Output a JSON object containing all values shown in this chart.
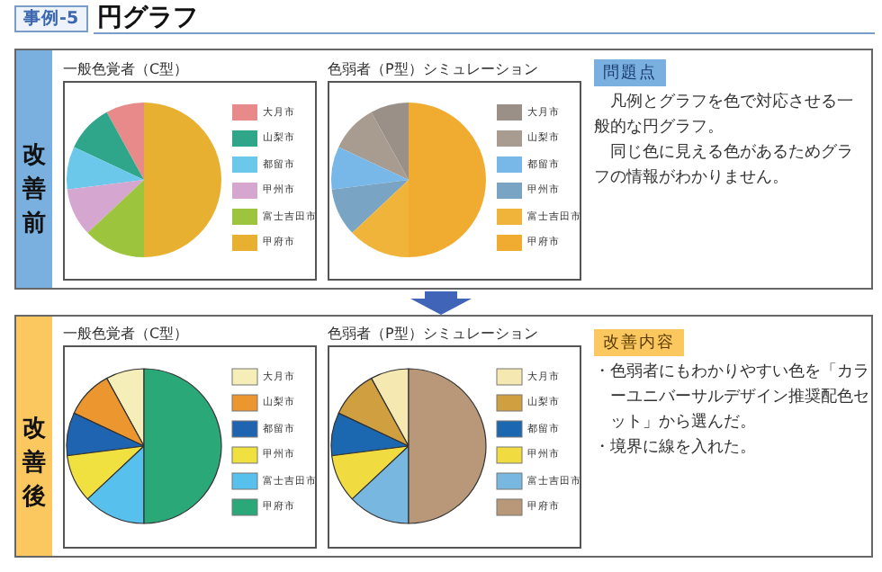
{
  "chart_data": [
    {
      "type": "pie",
      "title": "一般色覚者（C型）",
      "annotations": [
        "事例-5",
        "円グラフ",
        "改善前"
      ],
      "legend": "right",
      "categories": [
        "大月市",
        "山梨市",
        "都留市",
        "甲州市",
        "富士吉田市",
        "甲府市"
      ],
      "values": [
        8,
        10,
        9,
        10,
        13,
        50
      ],
      "colors": [
        "#e88a8a",
        "#2fa58a",
        "#6cc8ea",
        "#d4a6d0",
        "#9cc43c",
        "#e8b030"
      ]
    },
    {
      "type": "pie",
      "title": "色弱者（P型）シミュレーション",
      "legend": "right",
      "categories": [
        "大月市",
        "山梨市",
        "都留市",
        "甲州市",
        "富士吉田市",
        "甲府市"
      ],
      "values": [
        8,
        10,
        9,
        10,
        13,
        50
      ],
      "colors": [
        "#9a9088",
        "#a89c90",
        "#78b8e8",
        "#7aa4c4",
        "#f0b43a",
        "#f0ac30"
      ]
    },
    {
      "type": "other",
      "title": "問題点",
      "annotations": [
        "凡例とグラフを色で対応させる一般的な円グラフ。",
        "同じ色に見える色があるためグラフの情報がわかりません。"
      ]
    },
    {
      "type": "pie",
      "title": "一般色覚者（C型）",
      "annotations": [
        "改善後"
      ],
      "legend": "right",
      "categories": [
        "大月市",
        "山梨市",
        "都留市",
        "甲州市",
        "富士吉田市",
        "甲府市"
      ],
      "values": [
        8,
        10,
        9,
        10,
        13,
        50
      ],
      "colors": [
        "#f5eeb8",
        "#ec9630",
        "#1e64b0",
        "#f0e040",
        "#58c0ec",
        "#2aa878"
      ]
    },
    {
      "type": "pie",
      "title": "色弱者（P型）シミュレーション",
      "legend": "right",
      "categories": [
        "大月市",
        "山梨市",
        "都留市",
        "甲州市",
        "富士吉田市",
        "甲府市"
      ],
      "values": [
        8,
        10,
        9,
        10,
        13,
        50
      ],
      "colors": [
        "#f5e8b0",
        "#d0a040",
        "#1c68b0",
        "#f0dc40",
        "#78b8e0",
        "#b89878"
      ]
    },
    {
      "type": "other",
      "title": "改善内容",
      "annotations": [
        "・色弱者にもわかりやすい色を「カラーユニバーサルデザイン推奨配色セット」から選んだ。",
        "・境界に線を入れた。"
      ]
    }
  ]
}
